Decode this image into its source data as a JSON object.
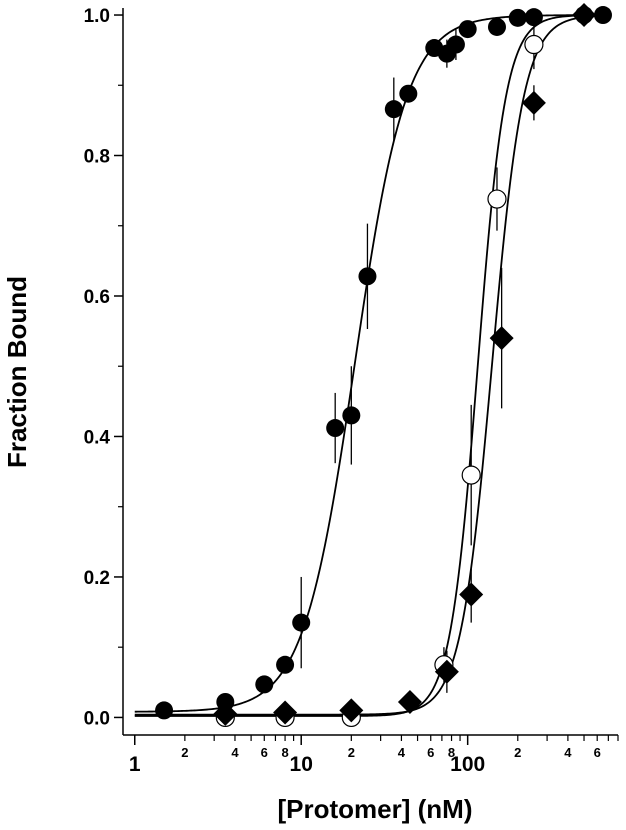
{
  "chart_data": {
    "type": "scatter",
    "title": "",
    "xlabel": "[Protomer]  (nM)",
    "ylabel": "Fraction Bound",
    "x_scale": "log",
    "xlim": [
      0.85,
      800
    ],
    "ylim": [
      -0.025,
      1.01
    ],
    "x_major_ticks": [
      1,
      10,
      100
    ],
    "x_major_tick_labels": [
      "1",
      "10",
      "100"
    ],
    "x_minor_ticks": [
      2,
      4,
      6,
      8,
      20,
      40,
      60,
      80,
      200,
      400,
      600
    ],
    "x_minor_tick_labels": [
      "2",
      "4",
      "6",
      "8",
      "2",
      "4",
      "6",
      "8",
      "2",
      "4",
      "6"
    ],
    "y_ticks": [
      0.0,
      0.2,
      0.4,
      0.6,
      0.8,
      1.0
    ],
    "y_tick_labels": [
      "0.0",
      "0.2",
      "0.4",
      "0.6",
      "0.8",
      "1.0"
    ],
    "grid": false,
    "legend": "none",
    "series": [
      {
        "marker": "filled-circle",
        "color": "#000000",
        "points": [
          {
            "x": 1.5,
            "y": 0.01
          },
          {
            "x": 3.5,
            "y": 0.022
          },
          {
            "x": 6,
            "y": 0.047
          },
          {
            "x": 8,
            "y": 0.075,
            "err": 0.005
          },
          {
            "x": 10,
            "y": 0.135,
            "err": 0.065
          },
          {
            "x": 16,
            "y": 0.412,
            "err": 0.05
          },
          {
            "x": 20,
            "y": 0.43,
            "err": 0.07
          },
          {
            "x": 25,
            "y": 0.628,
            "err": 0.075
          },
          {
            "x": 36,
            "y": 0.866,
            "err": 0.045
          },
          {
            "x": 44,
            "y": 0.888
          },
          {
            "x": 63,
            "y": 0.953
          },
          {
            "x": 75,
            "y": 0.945,
            "err": 0.02
          },
          {
            "x": 85,
            "y": 0.958,
            "err": 0.022
          },
          {
            "x": 100,
            "y": 0.98
          },
          {
            "x": 150,
            "y": 0.983
          },
          {
            "x": 200,
            "y": 0.996
          },
          {
            "x": 250,
            "y": 0.997
          },
          {
            "x": 500,
            "y": 1.0
          },
          {
            "x": 650,
            "y": 1.0
          }
        ],
        "fit": {
          "kd": 21,
          "n": 2.8,
          "baseline": 0.008
        }
      },
      {
        "marker": "open-circle",
        "color": "#000000",
        "points": [
          {
            "x": 3.5,
            "y": 0.0
          },
          {
            "x": 8,
            "y": 0.0
          },
          {
            "x": 20,
            "y": 0.0
          },
          {
            "x": 72,
            "y": 0.075,
            "err": 0.025
          },
          {
            "x": 105,
            "y": 0.345,
            "err": 0.1
          },
          {
            "x": 150,
            "y": 0.738,
            "err": 0.045
          },
          {
            "x": 250,
            "y": 0.958,
            "err": 0.035
          }
        ],
        "fit": {
          "kd": 115,
          "n": 5.2,
          "baseline": 0.002
        }
      },
      {
        "marker": "filled-diamond",
        "color": "#000000",
        "points": [
          {
            "x": 3.5,
            "y": 0.005
          },
          {
            "x": 8,
            "y": 0.007
          },
          {
            "x": 20,
            "y": 0.01
          },
          {
            "x": 45,
            "y": 0.022
          },
          {
            "x": 75,
            "y": 0.065,
            "err": 0.03
          },
          {
            "x": 105,
            "y": 0.175,
            "err": 0.04
          },
          {
            "x": 160,
            "y": 0.54,
            "err": 0.1
          },
          {
            "x": 250,
            "y": 0.875,
            "err": 0.025
          },
          {
            "x": 500,
            "y": 1.0
          }
        ],
        "fit": {
          "kd": 140,
          "n": 4.6,
          "baseline": 0.004
        }
      }
    ]
  }
}
